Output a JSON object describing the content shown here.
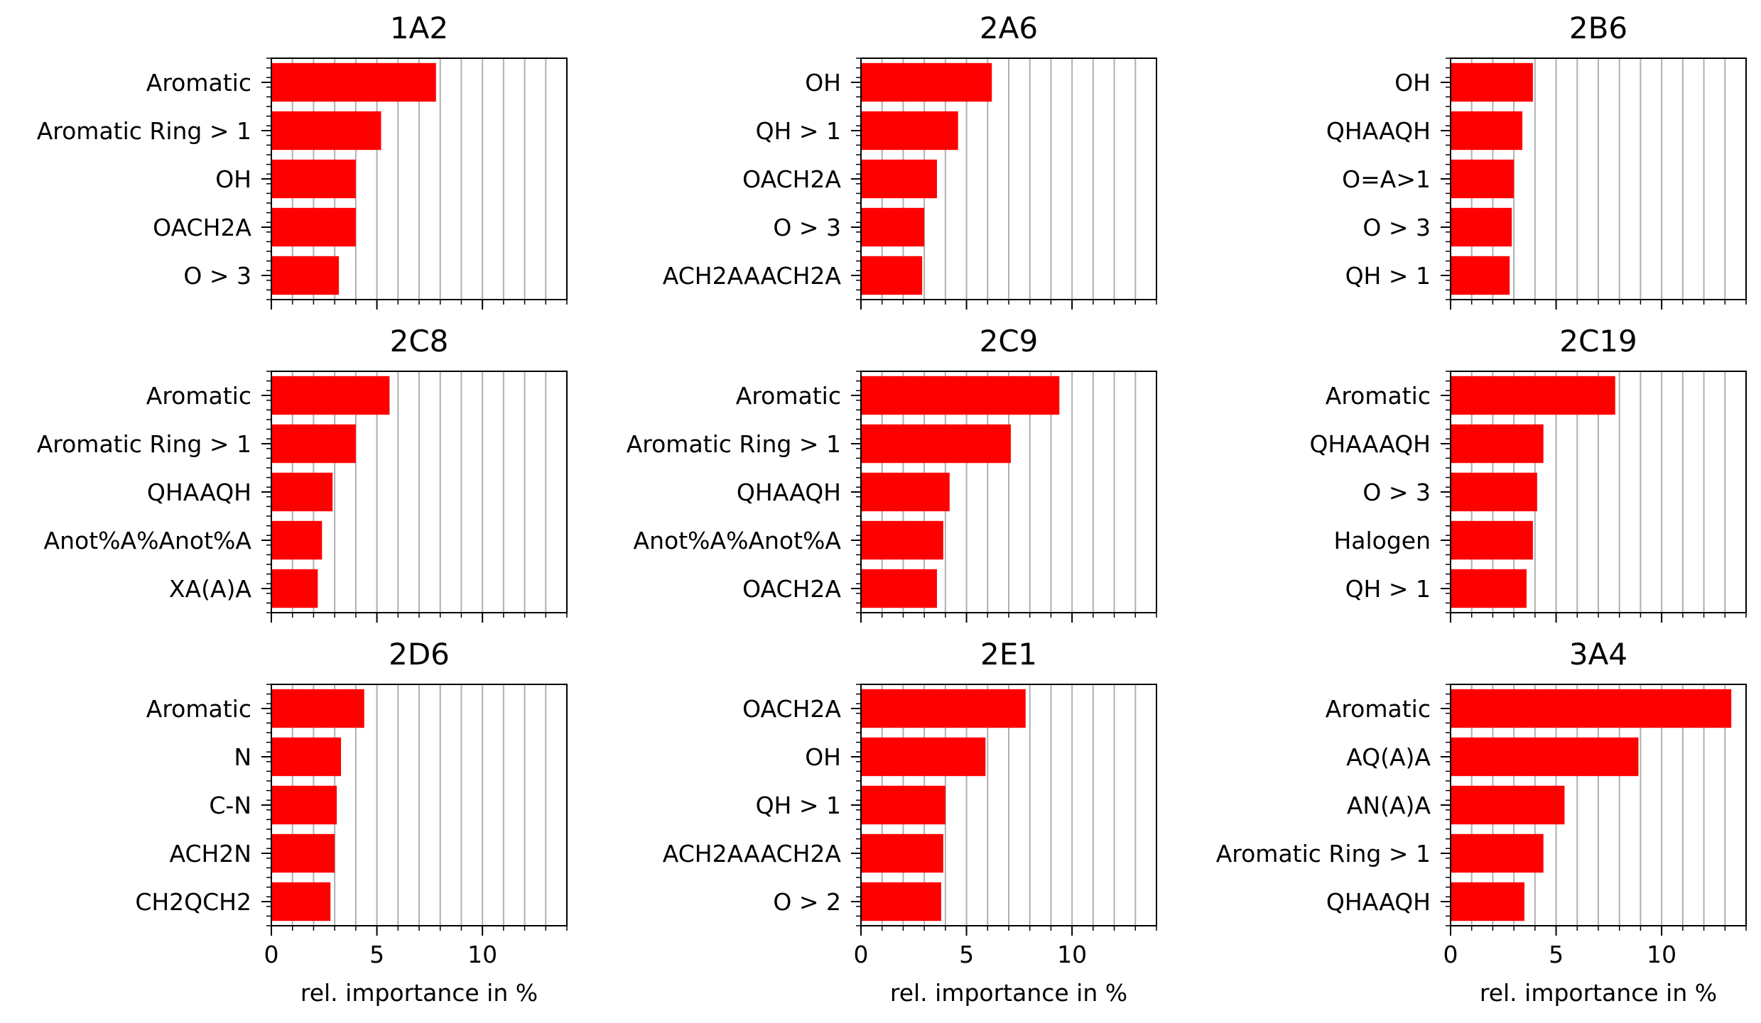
{
  "chart_data": [
    {
      "type": "bar",
      "orientation": "horizontal",
      "title": "1A2",
      "categories": [
        "Aromatic",
        "Aromatic Ring > 1",
        "OH",
        "OACH2A",
        "O > 3"
      ],
      "values": [
        7.8,
        5.2,
        4.0,
        4.0,
        3.2
      ],
      "xlim": [
        0,
        14
      ],
      "xticks": [
        0,
        5,
        10
      ],
      "xlabel": "",
      "grid": "vertical",
      "color": "#ff0000"
    },
    {
      "type": "bar",
      "orientation": "horizontal",
      "title": "2A6",
      "categories": [
        "OH",
        "QH > 1",
        "OACH2A",
        "O > 3",
        "ACH2AAACH2A"
      ],
      "values": [
        6.2,
        4.6,
        3.6,
        3.0,
        2.9
      ],
      "xlim": [
        0,
        14
      ],
      "xticks": [
        0,
        5,
        10
      ],
      "xlabel": "",
      "grid": "vertical",
      "color": "#ff0000"
    },
    {
      "type": "bar",
      "orientation": "horizontal",
      "title": "2B6",
      "categories": [
        "OH",
        "QHAAQH",
        "O=A>1",
        "O > 3",
        "QH > 1"
      ],
      "values": [
        3.9,
        3.4,
        3.0,
        2.9,
        2.8
      ],
      "xlim": [
        0,
        14
      ],
      "xticks": [
        0,
        5,
        10
      ],
      "xlabel": "",
      "grid": "vertical",
      "color": "#ff0000"
    },
    {
      "type": "bar",
      "orientation": "horizontal",
      "title": "2C8",
      "categories": [
        "Aromatic",
        "Aromatic Ring > 1",
        "QHAAQH",
        "Anot%A%Anot%A",
        "XA(A)A"
      ],
      "values": [
        5.6,
        4.0,
        2.9,
        2.4,
        2.2
      ],
      "xlim": [
        0,
        14
      ],
      "xticks": [
        0,
        5,
        10
      ],
      "xlabel": "",
      "grid": "vertical",
      "color": "#ff0000"
    },
    {
      "type": "bar",
      "orientation": "horizontal",
      "title": "2C9",
      "categories": [
        "Aromatic",
        "Aromatic Ring > 1",
        "QHAAQH",
        "Anot%A%Anot%A",
        "OACH2A"
      ],
      "values": [
        9.4,
        7.1,
        4.2,
        3.9,
        3.6
      ],
      "xlim": [
        0,
        14
      ],
      "xticks": [
        0,
        5,
        10
      ],
      "xlabel": "",
      "grid": "vertical",
      "color": "#ff0000"
    },
    {
      "type": "bar",
      "orientation": "horizontal",
      "title": "2C19",
      "categories": [
        "Aromatic",
        "QHAAAQH",
        "O > 3",
        "Halogen",
        "QH > 1"
      ],
      "values": [
        7.8,
        4.4,
        4.1,
        3.9,
        3.6
      ],
      "xlim": [
        0,
        14
      ],
      "xticks": [
        0,
        5,
        10
      ],
      "xlabel": "",
      "grid": "vertical",
      "color": "#ff0000"
    },
    {
      "type": "bar",
      "orientation": "horizontal",
      "title": "2D6",
      "categories": [
        "Aromatic",
        "N",
        "C-N",
        "ACH2N",
        "CH2QCH2"
      ],
      "values": [
        4.4,
        3.3,
        3.1,
        3.0,
        2.8
      ],
      "xlim": [
        0,
        14
      ],
      "xticks": [
        0,
        5,
        10
      ],
      "xlabel": "rel. importance in %",
      "grid": "vertical",
      "color": "#ff0000"
    },
    {
      "type": "bar",
      "orientation": "horizontal",
      "title": "2E1",
      "categories": [
        "OACH2A",
        "OH",
        "QH > 1",
        "ACH2AAACH2A",
        "O > 2"
      ],
      "values": [
        7.8,
        5.9,
        4.0,
        3.9,
        3.8
      ],
      "xlim": [
        0,
        14
      ],
      "xticks": [
        0,
        5,
        10
      ],
      "xlabel": "rel. importance in %",
      "grid": "vertical",
      "color": "#ff0000"
    },
    {
      "type": "bar",
      "orientation": "horizontal",
      "title": "3A4",
      "categories": [
        "Aromatic",
        "AQ(A)A",
        "AN(A)A",
        "Aromatic Ring > 1",
        "QHAAQH"
      ],
      "values": [
        13.3,
        8.9,
        5.4,
        4.4,
        3.5
      ],
      "xlim": [
        0,
        14
      ],
      "xticks": [
        0,
        5,
        10
      ],
      "xlabel": "rel. importance in %",
      "grid": "vertical",
      "color": "#ff0000"
    }
  ]
}
